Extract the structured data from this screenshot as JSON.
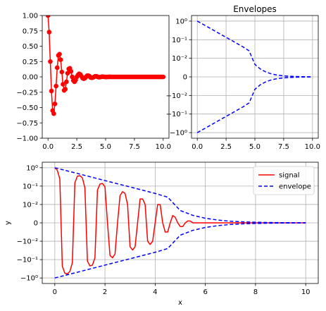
{
  "chart_data": [
    {
      "id": "top-left",
      "type": "line",
      "title": "",
      "xlabel": "",
      "ylabel": "",
      "xlim": [
        -0.5,
        10.5
      ],
      "ylim": [
        -1.0,
        1.0
      ],
      "xticks": [
        0,
        2.5,
        5,
        7.5,
        10
      ],
      "xtick_labels": [
        "0.0",
        "2.5",
        "5.0",
        "7.5",
        "10.0"
      ],
      "yticks": [
        1.0,
        0.75,
        0.5,
        0.25,
        0.0,
        -0.25,
        -0.5,
        -0.75,
        -1.0
      ],
      "ytick_labels": [
        "1.00",
        "0.75",
        "0.50",
        "0.25",
        "0.00",
        "−0.25",
        "−0.50",
        "−0.75",
        "−1.00"
      ],
      "grid": false,
      "series": [
        {
          "color": "#ff0000",
          "marker": "circle",
          "x": [
            0.0,
            0.1,
            0.2,
            0.3,
            0.4,
            0.5,
            0.6,
            0.7,
            0.8,
            0.9,
            1.0,
            1.1,
            1.2,
            1.3,
            1.4,
            1.5,
            1.6,
            1.7,
            1.8,
            1.9,
            2.0,
            2.1,
            2.2,
            2.3,
            2.4,
            2.5,
            2.6,
            2.7,
            2.8,
            2.9,
            3.0,
            3.1,
            3.2,
            3.3,
            3.4,
            3.5,
            3.6,
            3.7,
            3.8,
            3.9,
            4.0,
            4.1,
            4.2,
            4.3,
            4.4,
            4.5,
            4.6,
            4.7,
            4.8,
            4.9,
            5.0,
            5.1,
            5.2,
            5.3,
            5.4,
            5.5,
            5.6,
            5.7,
            5.8,
            5.9,
            6.0,
            6.1,
            6.2,
            6.3,
            6.4,
            6.5,
            6.6,
            6.7,
            6.8,
            6.9,
            7.0,
            7.1,
            7.2,
            7.3,
            7.4,
            7.5,
            7.6,
            7.7,
            7.8,
            7.9,
            8.0,
            8.1,
            8.2,
            8.3,
            8.4,
            8.5,
            8.6,
            8.7,
            8.8,
            8.9,
            9.0,
            9.1,
            9.2,
            9.3,
            9.4,
            9.5,
            9.6,
            9.7,
            9.8,
            9.9,
            10.0
          ],
          "y": [
            1.0,
            0.73,
            0.25,
            -0.23,
            -0.55,
            -0.6,
            -0.44,
            -0.15,
            0.15,
            0.35,
            0.37,
            0.28,
            0.08,
            -0.12,
            -0.22,
            -0.2,
            -0.08,
            0.06,
            0.13,
            0.14,
            0.09,
            0.0,
            -0.06,
            -0.08,
            -0.05,
            0.0,
            0.03,
            0.05,
            0.04,
            0.01,
            -0.02,
            -0.03,
            -0.02,
            0.0,
            0.02,
            0.02,
            0.01,
            -0.01,
            -0.015,
            -0.01,
            0.0,
            0.01,
            0.01,
            0.0,
            -0.005,
            -0.005,
            0.0,
            0.004,
            0.003,
            0.0,
            -0.002,
            -0.002,
            0.0,
            0.001,
            0.001,
            0.0,
            0.0,
            0.0,
            0.0,
            0.0,
            0.0,
            0.0,
            0.0,
            0.0,
            0.0,
            0.0,
            0.0,
            0.0,
            0.0,
            0.0,
            0.0,
            0.0,
            0.0,
            0.0,
            0.0,
            0.0,
            0.0,
            0.0,
            0.0,
            0.0,
            0.0,
            0.0,
            0.0,
            0.0,
            0.0,
            0.0,
            0.0,
            0.0,
            0.0,
            0.0,
            0.0,
            0.0,
            0.0,
            0.0,
            0.0,
            0.0,
            0.0,
            0.0,
            0.0,
            0.0,
            0.0
          ]
        }
      ]
    },
    {
      "id": "top-right",
      "type": "line",
      "title": "Envelopes",
      "xlabel": "",
      "ylabel": "",
      "yscale": "symlog",
      "symlog_linthresh": 0.01,
      "xlim": [
        -0.5,
        10.5
      ],
      "ylim": [
        -2.0,
        2.0
      ],
      "xticks": [
        0,
        2.5,
        5,
        7.5,
        10
      ],
      "xtick_labels": [
        "0.0",
        "2.5",
        "5.0",
        "7.5",
        "10.0"
      ],
      "yticks": [
        1,
        0.1,
        0.01,
        0,
        -0.01,
        -0.1,
        -1
      ],
      "ytick_labels": [
        "10⁰",
        "10⁻¹",
        "10⁻²",
        "0",
        "−10⁻²",
        "−10⁻¹",
        "−10⁰"
      ],
      "grid": true,
      "series": [
        {
          "color": "#0000ff",
          "style": "dashed",
          "x": [
            0,
            1,
            2,
            3,
            4,
            4.5,
            5,
            5.5,
            6,
            6.5,
            7,
            7.5,
            8,
            8.5,
            9,
            9.5,
            10
          ],
          "y": [
            1.0,
            0.45,
            0.2,
            0.09,
            0.04,
            0.025,
            0.0067,
            0.0041,
            0.0025,
            0.0015,
            0.0009,
            0.00055,
            0.00034,
            0.0002,
            0.00012,
            7e-05,
            4.5e-05
          ]
        },
        {
          "color": "#0000ff",
          "style": "dashed",
          "x": [
            0,
            1,
            2,
            3,
            4,
            4.5,
            5,
            5.5,
            6,
            6.5,
            7,
            7.5,
            8,
            8.5,
            9,
            9.5,
            10
          ],
          "y": [
            -1.0,
            -0.45,
            -0.2,
            -0.09,
            -0.04,
            -0.025,
            -0.0067,
            -0.0041,
            -0.0025,
            -0.0015,
            -0.0009,
            -0.00055,
            -0.00034,
            -0.0002,
            -0.00012,
            -7e-05,
            -4.5e-05
          ]
        }
      ]
    },
    {
      "id": "bottom",
      "type": "line",
      "title": "",
      "xlabel": "x",
      "ylabel": "y",
      "yscale": "symlog",
      "symlog_linthresh": 0.01,
      "xlim": [
        -0.5,
        10.5
      ],
      "ylim": [
        -2.0,
        2.0
      ],
      "xticks": [
        0,
        2,
        4,
        6,
        8,
        10
      ],
      "xtick_labels": [
        "0",
        "2",
        "4",
        "6",
        "8",
        "10"
      ],
      "yticks": [
        1,
        0.1,
        0.01,
        0,
        -0.01,
        -0.1,
        -1
      ],
      "ytick_labels": [
        "10⁰",
        "10⁻¹",
        "10⁻²",
        "0",
        "−10⁻²",
        "−10⁻¹",
        "−10⁰"
      ],
      "grid": true,
      "legend": "top-right",
      "series": [
        {
          "name": "signal",
          "color": "#ff0000",
          "style": "solid",
          "x": [
            0.0,
            0.1,
            0.2,
            0.3,
            0.4,
            0.5,
            0.6,
            0.7,
            0.8,
            0.9,
            1.0,
            1.1,
            1.2,
            1.3,
            1.4,
            1.5,
            1.6,
            1.7,
            1.8,
            1.9,
            2.0,
            2.1,
            2.2,
            2.3,
            2.4,
            2.5,
            2.6,
            2.7,
            2.8,
            2.9,
            3.0,
            3.1,
            3.2,
            3.3,
            3.4,
            3.5,
            3.6,
            3.7,
            3.8,
            3.9,
            4.0,
            4.1,
            4.2,
            4.3,
            4.4,
            4.5,
            4.6,
            4.7,
            4.8,
            4.9,
            5.0,
            5.1,
            5.2,
            5.3,
            5.4,
            5.5,
            5.6,
            5.7,
            5.8,
            5.9,
            6.0,
            6.1,
            6.2,
            6.3,
            6.4,
            6.5,
            6.6,
            6.7,
            6.8,
            6.9,
            7.0,
            7.1,
            7.2,
            7.3,
            7.4,
            7.5,
            7.6,
            7.7,
            7.8,
            7.9,
            8.0,
            8.1,
            8.2,
            8.3,
            8.4,
            8.5,
            8.6,
            8.7,
            8.8,
            8.9,
            9.0,
            9.1,
            9.2,
            9.3,
            9.4,
            9.5,
            9.6,
            9.7,
            9.8,
            9.9,
            10.0
          ],
          "y": [
            1.0,
            0.73,
            0.25,
            -0.23,
            -0.55,
            -0.6,
            -0.44,
            -0.15,
            0.15,
            0.35,
            0.37,
            0.28,
            0.08,
            -0.12,
            -0.22,
            -0.2,
            -0.08,
            0.06,
            0.13,
            0.14,
            0.09,
            0.0,
            -0.06,
            -0.08,
            -0.05,
            0.0,
            0.03,
            0.05,
            0.04,
            0.01,
            -0.02,
            -0.03,
            -0.02,
            0.0,
            0.02,
            0.02,
            0.01,
            -0.01,
            -0.015,
            -0.01,
            0.0,
            0.01,
            0.01,
            0.0,
            -0.005,
            -0.005,
            0.0,
            0.004,
            0.003,
            0.0,
            -0.002,
            -0.002,
            0.0,
            0.001,
            0.001,
            0.0,
            0.0,
            0.0,
            0.0,
            0.0,
            0.0,
            0.0,
            0.0,
            0.0,
            0.0,
            0.0,
            0.0,
            0.0,
            0.0,
            0.0,
            0.0,
            0.0,
            0.0,
            0.0,
            0.0,
            0.0,
            0.0,
            0.0,
            0.0,
            0.0,
            0.0,
            0.0,
            0.0,
            0.0,
            0.0,
            0.0,
            0.0,
            0.0,
            0.0,
            0.0,
            0.0,
            0.0,
            0.0,
            0.0,
            0.0,
            0.0,
            0.0,
            0.0,
            0.0,
            0.0,
            0.0
          ]
        },
        {
          "name": "envelope",
          "color": "#0000ff",
          "style": "dashed",
          "x": [
            0,
            1,
            2,
            3,
            4,
            4.5,
            5,
            5.5,
            6,
            6.5,
            7,
            7.5,
            8,
            8.5,
            9,
            9.5,
            10
          ],
          "y": [
            1.0,
            0.45,
            0.2,
            0.09,
            0.04,
            0.025,
            0.0067,
            0.0041,
            0.0025,
            0.0015,
            0.0009,
            0.00055,
            0.00034,
            0.0002,
            0.00012,
            7e-05,
            4.5e-05
          ]
        },
        {
          "color": "#0000ff",
          "style": "dashed",
          "x": [
            0,
            1,
            2,
            3,
            4,
            4.5,
            5,
            5.5,
            6,
            6.5,
            7,
            7.5,
            8,
            8.5,
            9,
            9.5,
            10
          ],
          "y": [
            -1.0,
            -0.45,
            -0.2,
            -0.09,
            -0.04,
            -0.025,
            -0.0067,
            -0.0041,
            -0.0025,
            -0.0015,
            -0.0009,
            -0.00055,
            -0.00034,
            -0.0002,
            -0.00012,
            -7e-05,
            -4.5e-05
          ]
        }
      ]
    }
  ]
}
